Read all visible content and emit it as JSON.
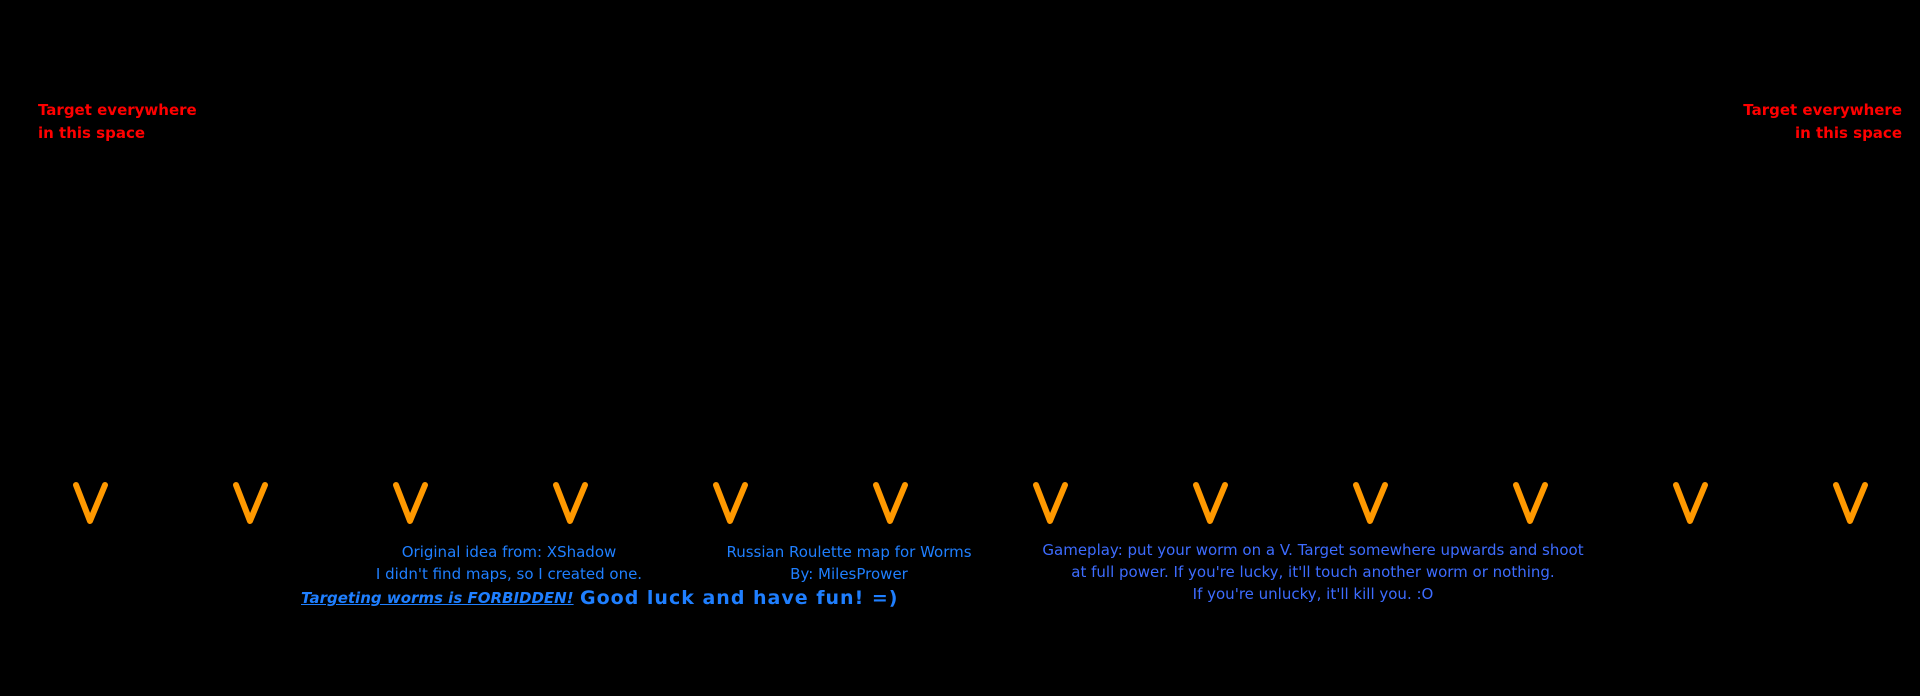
{
  "target_left": {
    "line1": "Target everywhere",
    "line2": "in this space"
  },
  "target_right": {
    "line1": "Target everywhere",
    "line2": "in this space"
  },
  "spawn_markers": {
    "glyph": "V",
    "count": 12,
    "color": "#ff9900"
  },
  "credits": {
    "line1": "Original idea from: XShadow",
    "line2": "I didn't find maps, so I created one."
  },
  "title": {
    "line1": "Russian Roulette map for Worms",
    "line2": "By: MilesPrower"
  },
  "gameplay": {
    "line1": "Gameplay: put your worm on a V. Target somewhere upwards and shoot",
    "line2": "at full power. If you're lucky, it'll touch another worm or nothing.",
    "line3": "If you're unlucky, it'll kill you. :O"
  },
  "warning": "Targeting worms is FORBIDDEN!",
  "good_luck": "Good luck and have fun! =)",
  "colors": {
    "background": "#000000",
    "target_text": "#ff0000",
    "info_text": "#1f7fff",
    "gameplay_text": "#3d6cff"
  }
}
